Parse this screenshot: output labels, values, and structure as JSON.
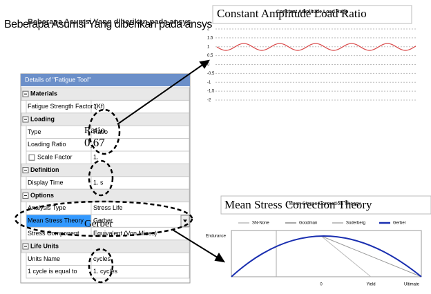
{
  "slide_title": "Beberapa Asumsi Yang diberikan pada ansys",
  "details_panel": {
    "header": "Details of \"Fatigue Tool\"",
    "rows": [
      {
        "section": "Materials"
      },
      {
        "label": "Fatigue Strength Factor (Kf)",
        "value": "1."
      },
      {
        "section": "Loading"
      },
      {
        "label": "Type",
        "value": "Ratio"
      },
      {
        "label": "Loading Ratio"
      },
      {
        "label": "Scale Factor",
        "value": "1."
      },
      {
        "section": "Definition"
      },
      {
        "label": "Display Time",
        "value": "1. s"
      },
      {
        "section": "Options"
      },
      {
        "label": "Analysis Type",
        "value": "Stress Life"
      },
      {
        "label": "Mean Stress Theory",
        "value": "Gerber"
      },
      {
        "label": "Stress Component",
        "value": "Equivalent (Von Mises)"
      },
      {
        "section": "Life Units"
      },
      {
        "label": "Units Name",
        "value": "cycles"
      },
      {
        "label": "1 cycle is equal to",
        "value": "1. cycles"
      }
    ]
  },
  "callouts": {
    "ratio_label": "Ratio",
    "ratio_value": "0,67",
    "mean_stress": "Gerber"
  },
  "load_chart": {
    "label": "Constant Amplitude Load Ratio",
    "title": "Constant Amplitude Load Ratio",
    "yticks": [
      2,
      1.5,
      1,
      0.5,
      0,
      -0.5,
      -1,
      -1.5,
      -2
    ]
  },
  "mean_stress_chart": {
    "label": "Mean Stress Correction Theory",
    "title": "Mean Stress Correction Theory",
    "legend": [
      "SN-None",
      "Goodman",
      "Soderberg",
      "Gerber"
    ],
    "y_label": "Endurance",
    "x_labels": [
      "0",
      "Yield",
      "Ultimate"
    ]
  }
}
